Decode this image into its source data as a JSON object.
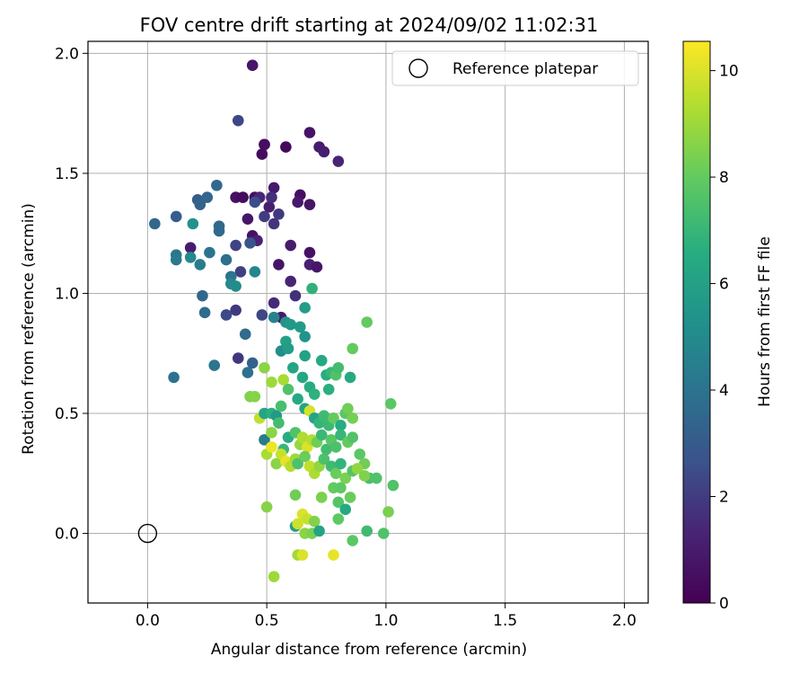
{
  "chart_data": {
    "type": "scatter",
    "title": "FOV centre drift starting at 2024/09/02 11:02:31",
    "xlabel": "Angular distance from reference (arcmin)",
    "ylabel": "Rotation from reference (arcmin)",
    "xlim": [
      -0.25,
      2.1
    ],
    "ylim": [
      -0.29,
      2.05
    ],
    "xticks": [
      "0.0",
      "0.5",
      "1.0",
      "1.5",
      "2.0"
    ],
    "yticks": [
      "0.0",
      "0.5",
      "1.0",
      "1.5",
      "2.0"
    ],
    "grid": true,
    "legend": {
      "position": "top-right",
      "entries": [
        "Reference platepar"
      ]
    },
    "reference_point": {
      "x": 0.0,
      "y": 0.0
    },
    "colorbar": {
      "label": "Hours from first FF file",
      "range": [
        0,
        10.55
      ],
      "ticks": [
        "0",
        "2",
        "4",
        "6",
        "8",
        "10"
      ],
      "colormap": "viridis"
    },
    "points": [
      [
        0.44,
        1.95,
        0.8
      ],
      [
        0.49,
        1.62,
        0.2
      ],
      [
        0.49,
        1.62,
        0.5
      ],
      [
        0.48,
        1.58,
        0.4
      ],
      [
        0.58,
        1.61,
        0.3
      ],
      [
        0.68,
        1.67,
        0.7
      ],
      [
        0.72,
        1.61,
        1.0
      ],
      [
        0.74,
        1.59,
        1.1
      ],
      [
        0.8,
        1.55,
        1.3
      ],
      [
        0.38,
        1.72,
        2.3
      ],
      [
        0.37,
        1.4,
        0.6
      ],
      [
        0.4,
        1.4,
        0.4
      ],
      [
        0.45,
        1.4,
        0.5
      ],
      [
        0.47,
        1.4,
        1.4
      ],
      [
        0.51,
        1.36,
        1.1
      ],
      [
        0.53,
        1.44,
        0.9
      ],
      [
        0.52,
        1.4,
        1.6
      ],
      [
        0.55,
        1.33,
        1.9
      ],
      [
        0.64,
        1.41,
        0.5
      ],
      [
        0.63,
        1.38,
        0.9
      ],
      [
        0.68,
        1.37,
        0.7
      ],
      [
        0.49,
        1.32,
        2.0
      ],
      [
        0.53,
        1.29,
        1.8
      ],
      [
        0.42,
        1.31,
        0.8
      ],
      [
        0.44,
        1.24,
        0.6
      ],
      [
        0.46,
        1.22,
        1.2
      ],
      [
        0.6,
        1.2,
        1.0
      ],
      [
        0.55,
        1.12,
        0.7
      ],
      [
        0.68,
        1.17,
        0.6
      ],
      [
        0.68,
        1.12,
        1.2
      ],
      [
        0.71,
        1.11,
        0.8
      ],
      [
        0.6,
        1.05,
        1.3
      ],
      [
        0.62,
        0.99,
        1.7
      ],
      [
        0.53,
        0.96,
        1.5
      ],
      [
        0.56,
        0.9,
        0.9
      ],
      [
        0.48,
        0.91,
        2.3
      ],
      [
        0.37,
        0.93,
        1.9
      ],
      [
        0.33,
        0.91,
        2.4
      ],
      [
        0.38,
        0.73,
        1.9
      ],
      [
        0.39,
        1.09,
        2.1
      ],
      [
        0.37,
        1.2,
        2.2
      ],
      [
        0.43,
        1.21,
        2.7
      ],
      [
        0.45,
        1.38,
        2.5
      ],
      [
        0.21,
        1.39,
        3.1
      ],
      [
        0.22,
        1.37,
        3.3
      ],
      [
        0.25,
        1.4,
        3.4
      ],
      [
        0.29,
        1.45,
        3.6
      ],
      [
        0.3,
        1.28,
        3.5
      ],
      [
        0.3,
        1.26,
        3.6
      ],
      [
        0.12,
        1.32,
        3.1
      ],
      [
        0.03,
        1.29,
        3.5
      ],
      [
        0.18,
        1.19,
        1.0
      ],
      [
        0.19,
        1.29,
        5.3
      ],
      [
        0.12,
        1.16,
        4.1
      ],
      [
        0.12,
        1.14,
        4.3
      ],
      [
        0.18,
        1.15,
        4.9
      ],
      [
        0.22,
        1.12,
        4.4
      ],
      [
        0.26,
        1.17,
        4.0
      ],
      [
        0.33,
        1.14,
        3.8
      ],
      [
        0.35,
        1.07,
        4.1
      ],
      [
        0.35,
        1.04,
        4.9
      ],
      [
        0.37,
        1.03,
        5.0
      ],
      [
        0.45,
        1.09,
        4.8
      ],
      [
        0.23,
        0.99,
        3.5
      ],
      [
        0.24,
        0.92,
        3.7
      ],
      [
        0.41,
        0.83,
        3.7
      ],
      [
        0.42,
        0.67,
        3.9
      ],
      [
        0.44,
        0.71,
        3.3
      ],
      [
        0.11,
        0.65,
        3.9
      ],
      [
        0.28,
        0.7,
        4.1
      ],
      [
        0.53,
        0.9,
        4.7
      ],
      [
        0.58,
        0.88,
        5.3
      ],
      [
        0.6,
        0.87,
        5.6
      ],
      [
        0.64,
        0.86,
        5.7
      ],
      [
        0.66,
        0.82,
        5.4
      ],
      [
        0.58,
        0.8,
        6.0
      ],
      [
        0.56,
        0.76,
        5.2
      ],
      [
        0.59,
        0.77,
        5.8
      ],
      [
        0.66,
        0.94,
        5.8
      ],
      [
        0.69,
        1.02,
        6.8
      ],
      [
        0.61,
        0.69,
        6.2
      ],
      [
        0.65,
        0.65,
        6.3
      ],
      [
        0.66,
        0.74,
        6.0
      ],
      [
        0.68,
        0.61,
        6.5
      ],
      [
        0.7,
        0.58,
        6.8
      ],
      [
        0.73,
        0.72,
        6.4
      ],
      [
        0.75,
        0.66,
        6.6
      ],
      [
        0.77,
        0.67,
        7.0
      ],
      [
        0.79,
        0.66,
        7.6
      ],
      [
        0.8,
        0.69,
        7.3
      ],
      [
        0.76,
        0.6,
        6.7
      ],
      [
        0.85,
        0.65,
        6.4
      ],
      [
        0.86,
        0.77,
        8.0
      ],
      [
        0.92,
        0.88,
        8.0
      ],
      [
        0.57,
        0.64,
        9.2
      ],
      [
        0.52,
        0.63,
        9.0
      ],
      [
        0.49,
        0.69,
        8.7
      ],
      [
        0.43,
        0.57,
        8.5
      ],
      [
        0.45,
        0.57,
        8.6
      ],
      [
        0.47,
        0.48,
        9.6
      ],
      [
        0.49,
        0.5,
        6.2
      ],
      [
        0.52,
        0.5,
        6.7
      ],
      [
        0.54,
        0.49,
        5.7
      ],
      [
        0.56,
        0.53,
        7.4
      ],
      [
        0.59,
        0.6,
        7.6
      ],
      [
        0.63,
        0.56,
        6.4
      ],
      [
        0.66,
        0.52,
        6.1
      ],
      [
        0.68,
        0.51,
        9.9
      ],
      [
        0.7,
        0.48,
        6.1
      ],
      [
        0.72,
        0.46,
        6.9
      ],
      [
        0.74,
        0.49,
        7.2
      ],
      [
        0.76,
        0.45,
        7.1
      ],
      [
        0.78,
        0.48,
        8.0
      ],
      [
        0.81,
        0.45,
        6.5
      ],
      [
        0.83,
        0.5,
        7.8
      ],
      [
        0.84,
        0.52,
        8.2
      ],
      [
        0.86,
        0.48,
        8.3
      ],
      [
        0.49,
        0.39,
        4.3
      ],
      [
        0.52,
        0.42,
        8.7
      ],
      [
        0.55,
        0.46,
        7.3
      ],
      [
        0.57,
        0.35,
        7.0
      ],
      [
        0.59,
        0.4,
        6.5
      ],
      [
        0.62,
        0.42,
        7.6
      ],
      [
        0.64,
        0.37,
        8.9
      ],
      [
        0.65,
        0.4,
        9.3
      ],
      [
        0.67,
        0.36,
        10.0
      ],
      [
        0.69,
        0.39,
        9.4
      ],
      [
        0.71,
        0.38,
        8.2
      ],
      [
        0.73,
        0.41,
        7.1
      ],
      [
        0.75,
        0.35,
        7.3
      ],
      [
        0.77,
        0.39,
        7.8
      ],
      [
        0.79,
        0.36,
        7.5
      ],
      [
        0.81,
        0.41,
        7.0
      ],
      [
        0.84,
        0.38,
        8.0
      ],
      [
        0.86,
        0.4,
        7.6
      ],
      [
        0.89,
        0.33,
        7.8
      ],
      [
        0.91,
        0.29,
        8.2
      ],
      [
        0.93,
        0.23,
        7.4
      ],
      [
        0.96,
        0.23,
        7.6
      ],
      [
        1.02,
        0.54,
        7.8
      ],
      [
        1.03,
        0.2,
        7.6
      ],
      [
        0.5,
        0.33,
        9.2
      ],
      [
        0.52,
        0.36,
        10.3
      ],
      [
        0.54,
        0.29,
        8.7
      ],
      [
        0.56,
        0.33,
        9.7
      ],
      [
        0.58,
        0.3,
        10.2
      ],
      [
        0.6,
        0.28,
        9.4
      ],
      [
        0.62,
        0.31,
        9.0
      ],
      [
        0.63,
        0.29,
        7.5
      ],
      [
        0.66,
        0.32,
        8.1
      ],
      [
        0.68,
        0.28,
        9.6
      ],
      [
        0.7,
        0.25,
        9.3
      ],
      [
        0.72,
        0.28,
        8.8
      ],
      [
        0.74,
        0.31,
        7.5
      ],
      [
        0.77,
        0.28,
        7.2
      ],
      [
        0.79,
        0.25,
        8.1
      ],
      [
        0.81,
        0.29,
        6.9
      ],
      [
        0.83,
        0.23,
        8.4
      ],
      [
        0.86,
        0.26,
        7.7
      ],
      [
        0.88,
        0.27,
        8.8
      ],
      [
        0.91,
        0.24,
        8.5
      ],
      [
        0.62,
        0.16,
        8.2
      ],
      [
        0.65,
        0.08,
        10.0
      ],
      [
        0.67,
        0.06,
        9.7
      ],
      [
        0.7,
        0.05,
        8.5
      ],
      [
        0.73,
        0.15,
        8.4
      ],
      [
        0.78,
        0.19,
        8.0
      ],
      [
        0.81,
        0.19,
        7.9
      ],
      [
        0.85,
        0.15,
        8.1
      ],
      [
        0.8,
        0.13,
        7.7
      ],
      [
        0.83,
        0.1,
        6.4
      ],
      [
        0.8,
        0.06,
        7.9
      ],
      [
        0.62,
        0.03,
        6.0
      ],
      [
        0.63,
        0.04,
        9.8
      ],
      [
        0.66,
        0.0,
        8.7
      ],
      [
        0.69,
        0.0,
        8.4
      ],
      [
        0.72,
        0.01,
        6.1
      ],
      [
        0.86,
        -0.03,
        7.8
      ],
      [
        0.92,
        0.01,
        7.2
      ],
      [
        0.99,
        0.0,
        7.6
      ],
      [
        1.01,
        0.09,
        8.4
      ],
      [
        0.5,
        0.11,
        8.6
      ],
      [
        0.63,
        -0.09,
        9.1
      ],
      [
        0.65,
        -0.09,
        10.0
      ],
      [
        0.78,
        -0.09,
        10.2
      ],
      [
        0.53,
        -0.18,
        9.0
      ]
    ]
  }
}
